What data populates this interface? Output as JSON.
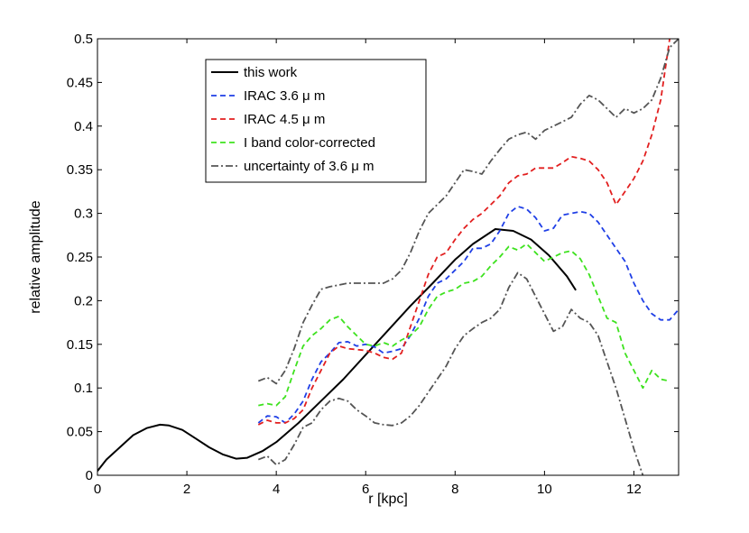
{
  "chart_data": {
    "type": "line",
    "title": "",
    "xlabel": "r [kpc]",
    "ylabel": "relative amplitude",
    "xlim": [
      0,
      13
    ],
    "ylim": [
      0,
      0.5
    ],
    "grid": false,
    "legend_position": "top-left",
    "x_ticks": [
      0,
      2,
      4,
      6,
      8,
      10,
      12
    ],
    "x_tick_labels": [
      "0",
      "2",
      "4",
      "6",
      "8",
      "10",
      "12"
    ],
    "y_ticks": [
      0,
      0.05,
      0.1,
      0.15,
      0.2,
      0.25,
      0.3,
      0.35,
      0.4,
      0.45,
      0.5
    ],
    "y_tick_labels": [
      "0",
      "0.05",
      "0.1",
      "0.15",
      "0.2",
      "0.25",
      "0.3",
      "0.35",
      "0.4",
      "0.45",
      "0.5"
    ],
    "series": [
      {
        "name": "this work",
        "color": "#000000",
        "style": "solid",
        "x": [
          0,
          0.2,
          0.5,
          0.8,
          1.1,
          1.4,
          1.6,
          1.9,
          2.2,
          2.5,
          2.8,
          3.1,
          3.35,
          3.7,
          4.0,
          4.5,
          5.0,
          5.5,
          6.0,
          6.5,
          7.0,
          7.5,
          8.0,
          8.4,
          8.9,
          9.3,
          9.7,
          10.1,
          10.5,
          10.7
        ],
        "y": [
          0.005,
          0.018,
          0.032,
          0.046,
          0.054,
          0.058,
          0.057,
          0.052,
          0.042,
          0.032,
          0.024,
          0.019,
          0.02,
          0.028,
          0.038,
          0.06,
          0.085,
          0.11,
          0.138,
          0.166,
          0.194,
          0.22,
          0.247,
          0.265,
          0.282,
          0.28,
          0.27,
          0.252,
          0.228,
          0.212
        ]
      },
      {
        "name": "IRAC 3.6 μ m",
        "color": "#1f3fe6",
        "style": "dashed",
        "x": [
          3.6,
          3.8,
          4.0,
          4.2,
          4.4,
          4.6,
          4.8,
          5.0,
          5.2,
          5.4,
          5.6,
          5.8,
          6.0,
          6.2,
          6.4,
          6.6,
          6.8,
          7.0,
          7.2,
          7.4,
          7.6,
          7.8,
          8.0,
          8.2,
          8.4,
          8.6,
          8.8,
          9.0,
          9.2,
          9.4,
          9.6,
          9.8,
          10.0,
          10.2,
          10.4,
          10.6,
          10.8,
          11.0,
          11.2,
          11.4,
          11.6,
          11.8,
          12.0,
          12.2,
          12.4,
          12.6,
          12.8,
          13.0
        ],
        "y": [
          0.06,
          0.068,
          0.067,
          0.06,
          0.07,
          0.085,
          0.11,
          0.13,
          0.14,
          0.152,
          0.153,
          0.148,
          0.15,
          0.147,
          0.14,
          0.142,
          0.145,
          0.16,
          0.18,
          0.205,
          0.22,
          0.225,
          0.235,
          0.245,
          0.26,
          0.26,
          0.265,
          0.28,
          0.3,
          0.308,
          0.305,
          0.295,
          0.28,
          0.283,
          0.298,
          0.3,
          0.302,
          0.3,
          0.29,
          0.275,
          0.26,
          0.245,
          0.22,
          0.2,
          0.185,
          0.178,
          0.178,
          0.19
        ]
      },
      {
        "name": "IRAC 4.5 μ m",
        "color": "#e21f1f",
        "style": "dashed",
        "x": [
          3.6,
          3.8,
          4.0,
          4.2,
          4.4,
          4.6,
          4.8,
          5.0,
          5.2,
          5.4,
          5.6,
          5.8,
          6.0,
          6.2,
          6.4,
          6.6,
          6.8,
          7.0,
          7.2,
          7.4,
          7.6,
          7.8,
          8.0,
          8.2,
          8.4,
          8.6,
          8.8,
          9.0,
          9.2,
          9.4,
          9.6,
          9.8,
          10.0,
          10.2,
          10.4,
          10.6,
          10.8,
          11.0,
          11.2,
          11.4,
          11.6,
          11.8,
          12.0,
          12.2,
          12.4,
          12.6,
          12.8
        ],
        "y": [
          0.058,
          0.063,
          0.06,
          0.06,
          0.065,
          0.075,
          0.1,
          0.12,
          0.14,
          0.148,
          0.145,
          0.144,
          0.143,
          0.14,
          0.135,
          0.133,
          0.14,
          0.17,
          0.2,
          0.23,
          0.25,
          0.255,
          0.27,
          0.283,
          0.293,
          0.3,
          0.31,
          0.32,
          0.335,
          0.343,
          0.345,
          0.352,
          0.352,
          0.352,
          0.358,
          0.365,
          0.363,
          0.36,
          0.35,
          0.335,
          0.31,
          0.325,
          0.34,
          0.36,
          0.39,
          0.43,
          0.5
        ]
      },
      {
        "name": "I band color-corrected",
        "color": "#3ee21f",
        "style": "dashed",
        "x": [
          3.6,
          3.8,
          4.0,
          4.2,
          4.4,
          4.6,
          4.8,
          5.0,
          5.2,
          5.4,
          5.6,
          5.8,
          6.0,
          6.2,
          6.4,
          6.6,
          6.8,
          7.0,
          7.2,
          7.4,
          7.6,
          7.8,
          8.0,
          8.2,
          8.4,
          8.6,
          8.8,
          9.0,
          9.2,
          9.4,
          9.6,
          9.8,
          10.0,
          10.2,
          10.4,
          10.6,
          10.8,
          11.0,
          11.2,
          11.4,
          11.6,
          11.8,
          12.0,
          12.2,
          12.4,
          12.6,
          12.8
        ],
        "y": [
          0.08,
          0.082,
          0.08,
          0.09,
          0.12,
          0.148,
          0.16,
          0.168,
          0.178,
          0.182,
          0.17,
          0.16,
          0.15,
          0.148,
          0.152,
          0.148,
          0.155,
          0.16,
          0.17,
          0.19,
          0.205,
          0.21,
          0.213,
          0.22,
          0.222,
          0.228,
          0.24,
          0.25,
          0.262,
          0.258,
          0.265,
          0.255,
          0.245,
          0.25,
          0.255,
          0.257,
          0.248,
          0.23,
          0.205,
          0.18,
          0.175,
          0.14,
          0.12,
          0.1,
          0.12,
          0.11,
          0.108
        ]
      },
      {
        "name": "uncertainty of 3.6 μ m",
        "color": "#555555",
        "style": "dashdot",
        "segments": [
          {
            "x": [
              3.6,
              3.8,
              4.0,
              4.2,
              4.4,
              4.6,
              4.8,
              5.0,
              5.2,
              5.4,
              5.6,
              5.8,
              6.0,
              6.2,
              6.4,
              6.6,
              6.8,
              7.0,
              7.2,
              7.4,
              7.6,
              7.8,
              8.0,
              8.2,
              8.4,
              8.6,
              8.8,
              9.0,
              9.2,
              9.4,
              9.6,
              9.8,
              10.0,
              10.2,
              10.4,
              10.6,
              10.8,
              11.0,
              11.2,
              11.4,
              11.6,
              11.8,
              12.0,
              12.2,
              12.4,
              12.6,
              12.8,
              13.0
            ],
            "y": [
              0.108,
              0.112,
              0.105,
              0.12,
              0.145,
              0.175,
              0.195,
              0.213,
              0.216,
              0.218,
              0.22,
              0.22,
              0.22,
              0.22,
              0.22,
              0.225,
              0.235,
              0.255,
              0.28,
              0.3,
              0.31,
              0.32,
              0.335,
              0.35,
              0.348,
              0.345,
              0.36,
              0.373,
              0.385,
              0.39,
              0.393,
              0.385,
              0.395,
              0.4,
              0.405,
              0.41,
              0.425,
              0.435,
              0.43,
              0.42,
              0.41,
              0.42,
              0.415,
              0.42,
              0.43,
              0.455,
              0.49,
              0.5
            ]
          },
          {
            "x": [
              3.6,
              3.8,
              4.0,
              4.2,
              4.4,
              4.6,
              4.8,
              5.0,
              5.2,
              5.4,
              5.6,
              5.8,
              6.0,
              6.2,
              6.4,
              6.6,
              6.8,
              7.0,
              7.2,
              7.4,
              7.6,
              7.8,
              8.0,
              8.2,
              8.4,
              8.6,
              8.8,
              9.0,
              9.2,
              9.4,
              9.6,
              9.8,
              10.0,
              10.2,
              10.4,
              10.6,
              10.8,
              11.0,
              11.2,
              11.4,
              11.6,
              11.8,
              12.0,
              12.2
            ],
            "y": [
              0.018,
              0.022,
              0.012,
              0.018,
              0.035,
              0.055,
              0.06,
              0.075,
              0.085,
              0.088,
              0.085,
              0.075,
              0.068,
              0.06,
              0.058,
              0.057,
              0.06,
              0.068,
              0.08,
              0.095,
              0.11,
              0.125,
              0.145,
              0.16,
              0.168,
              0.175,
              0.18,
              0.19,
              0.215,
              0.232,
              0.225,
              0.205,
              0.185,
              0.165,
              0.17,
              0.19,
              0.18,
              0.175,
              0.16,
              0.13,
              0.1,
              0.065,
              0.03,
              0.0
            ]
          }
        ]
      }
    ]
  }
}
